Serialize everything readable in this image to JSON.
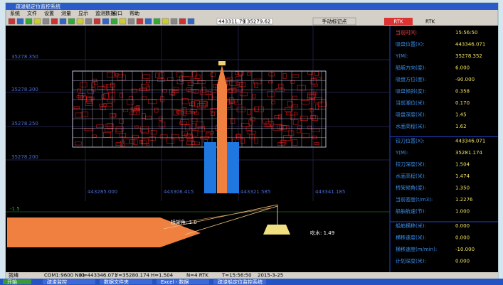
{
  "window": {
    "title": "疏浚船定位监控系统",
    "menu": [
      "系统",
      "文件",
      "设置",
      "测量",
      "显示",
      "监测数据",
      "窗口",
      "帮助"
    ],
    "toolbar_fields": [
      "443311.79",
      "35279.62"
    ],
    "mode_button": "手动标记点",
    "gps_status": "RTK"
  },
  "map": {
    "y_labels": [
      "35278.350",
      "35278.300",
      "35278.250",
      "35278.200"
    ],
    "x_labels": [
      "443285.000",
      "443306.415",
      "443321.585",
      "443341.185"
    ],
    "profile_label": "-1.5",
    "ladder_angle": "桥架角: 1.0",
    "draft": "吃水: 1.49"
  },
  "panel": {
    "sections": [
      [
        [
          "当前时间:",
          "15:56:50"
        ],
        [
          "吸盘位置(X):",
          "443346.071"
        ],
        [
          "Y(M):",
          "35278.352"
        ],
        [
          "船艏方向(度):",
          "6.000"
        ],
        [
          "吸盘方位(度):",
          "-90.000"
        ],
        [
          "吸盘倾斜(度):",
          "0.358"
        ],
        [
          "当前潮位(米):",
          "0.170"
        ],
        [
          "吸盘深度(米):",
          "1.45"
        ],
        [
          "水面高程(米):",
          "1.62"
        ]
      ],
      [
        [
          "铰刀位置(X):",
          "443346.071"
        ],
        [
          "Y(M):",
          "35281.174"
        ],
        [
          "铰刀深度(米):",
          "1.504"
        ],
        [
          "水面高程(米):",
          "1.474"
        ],
        [
          "桥架倾角(度):",
          "1.350"
        ],
        [
          "当前密度(t/m3):",
          "1.2276"
        ],
        [
          "船舶航速(节):",
          "1.000"
        ]
      ],
      [
        [
          "船舶横移(米):",
          "0.000"
        ],
        [
          "横移速度(米):",
          "0.000"
        ],
        [
          "横移速度(m/min):",
          "-10.000"
        ],
        [
          "计划深度(米):",
          "0.000"
        ]
      ]
    ]
  },
  "status_bar": [
    "就绪",
    "COM1:9600 N81",
    "X=443346.071",
    "Y=35280.174",
    "H=1.504",
    "N=4 RTK",
    "T=15:56:50",
    "2015-3-25"
  ],
  "taskbar": [
    "开始",
    "疏浚监控",
    "数据文件夹",
    "Excel - 数据",
    "疏浚船定位监控系统"
  ]
}
